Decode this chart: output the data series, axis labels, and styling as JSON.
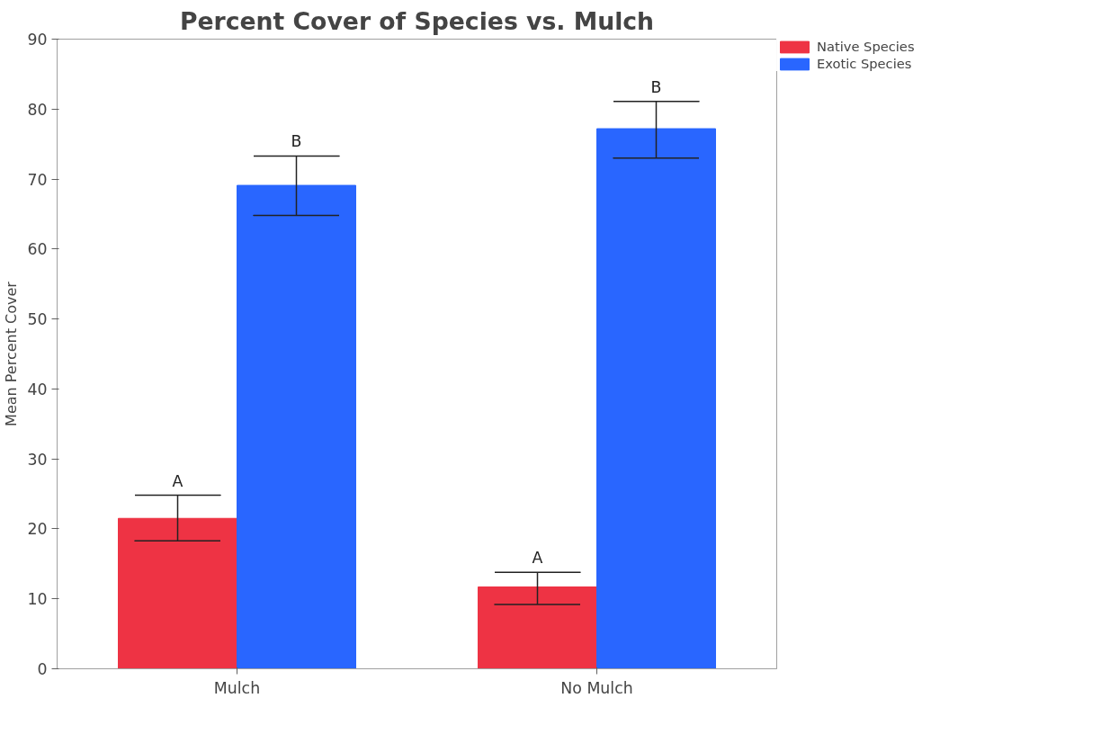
{
  "chart_data": {
    "type": "bar",
    "title": "Percent Cover of Species vs. Mulch",
    "ylabel": "Mean Percent Cover",
    "categories": [
      "Mulch",
      "No Mulch"
    ],
    "series": [
      {
        "name": "Native Species",
        "color": "#ee3344",
        "values": [
          21.5,
          11.7
        ],
        "errors": [
          [
            18.3,
            24.8
          ],
          [
            9.2,
            13.8
          ]
        ]
      },
      {
        "name": "Exotic Species",
        "color": "#2966ff",
        "values": [
          69.1,
          77.2
        ],
        "errors": [
          [
            64.8,
            73.3
          ],
          [
            73.0,
            81.1
          ]
        ]
      }
    ],
    "ylim": [
      0,
      90
    ],
    "yticks": [
      0,
      10,
      20,
      30,
      40,
      50,
      60,
      70,
      80,
      90
    ],
    "grid": false,
    "legend": "top right",
    "annotations": [
      "A",
      "B",
      "A",
      "B"
    ]
  }
}
